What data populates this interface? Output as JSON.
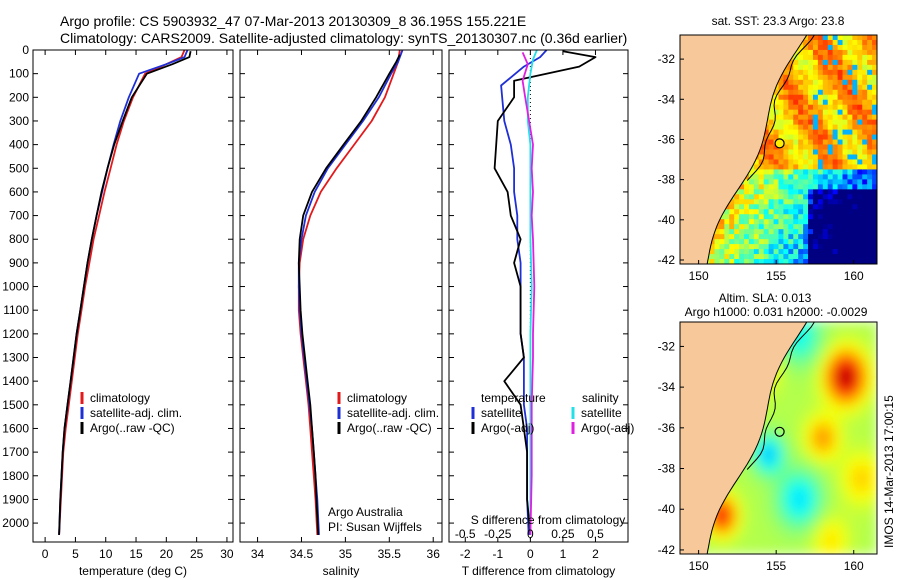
{
  "header": {
    "line1": "Argo profile: CS 5903932_47 07-Mar-2013 20130309_8 36.195S 155.221E",
    "line2": "Climatology: CARS2009. Satellite-adjusted climatology: synTS_20130307.nc (0.36d earlier)"
  },
  "colors": {
    "climatology": "#e31a1c",
    "satellite": "#1f2fd6",
    "argo": "#000000",
    "sal_satellite": "#22e0e8",
    "sal_argo": "#e020e0",
    "land": "#f7c99a"
  },
  "chart_data": [
    {
      "id": "temperature",
      "type": "line",
      "xlabel": "temperature (deg C)",
      "ylabel": "",
      "xlim": [
        -2,
        31
      ],
      "ylim": [
        2080,
        0
      ],
      "xticks": [
        0,
        5,
        10,
        15,
        20,
        25,
        30
      ],
      "yticks": [
        0,
        100,
        200,
        300,
        400,
        500,
        600,
        700,
        800,
        900,
        1000,
        1100,
        1200,
        1300,
        1400,
        1500,
        1600,
        1700,
        1800,
        1900,
        2000
      ],
      "legend": [
        "climatology",
        "satellite-adj. clim.",
        "Argo(..raw -QC)"
      ],
      "series": [
        {
          "name": "climatology",
          "x": [
            23.0,
            22.5,
            20.0,
            16.5,
            14.5,
            13.0,
            11.8,
            10.8,
            9.8,
            8.9,
            8.0,
            7.3,
            6.6,
            6.0,
            5.4,
            4.9,
            4.4,
            3.9,
            3.4,
            3.0,
            2.6,
            2.3
          ],
          "y": [
            0,
            30,
            60,
            100,
            200,
            300,
            400,
            500,
            600,
            700,
            800,
            900,
            1000,
            1100,
            1200,
            1300,
            1400,
            1500,
            1600,
            1700,
            1900,
            2050
          ]
        },
        {
          "name": "satellite-adj. clim.",
          "x": [
            23.5,
            23.0,
            20.0,
            15.5,
            13.8,
            12.4,
            11.3,
            10.3,
            9.4,
            8.5,
            7.7,
            7.0,
            6.4,
            5.8,
            5.2,
            4.7,
            4.2,
            3.7,
            3.2,
            2.9,
            2.5,
            2.3
          ],
          "y": [
            0,
            30,
            60,
            100,
            200,
            300,
            400,
            500,
            600,
            700,
            800,
            900,
            1000,
            1100,
            1200,
            1300,
            1400,
            1500,
            1600,
            1700,
            1900,
            2050
          ]
        },
        {
          "name": "Argo(..raw -QC)",
          "x": [
            24.0,
            23.8,
            21.0,
            16.8,
            14.3,
            12.8,
            11.4,
            10.3,
            9.3,
            8.5,
            7.7,
            7.0,
            6.4,
            5.8,
            5.2,
            4.7,
            4.2,
            3.7,
            3.2,
            2.9,
            2.5,
            2.3
          ],
          "y": [
            5,
            30,
            60,
            100,
            200,
            300,
            400,
            500,
            600,
            700,
            800,
            900,
            1000,
            1100,
            1200,
            1300,
            1400,
            1500,
            1600,
            1700,
            1900,
            2050
          ]
        }
      ]
    },
    {
      "id": "salinity",
      "type": "line",
      "xlabel": "salinity",
      "xlim": [
        33.8,
        36.1
      ],
      "ylim": [
        2080,
        0
      ],
      "xticks": [
        34,
        34.5,
        35,
        35.5,
        36
      ],
      "legend": [
        "climatology",
        "satellite-adj. clim.",
        "Argo(..raw -QC)"
      ],
      "annotation": [
        "Argo Australia",
        "PI: Susan Wijffels"
      ],
      "series": [
        {
          "name": "climatology",
          "x": [
            35.62,
            35.6,
            35.55,
            35.45,
            35.3,
            35.1,
            34.9,
            34.72,
            34.6,
            34.52,
            34.48,
            34.47,
            34.47,
            34.49,
            34.52,
            34.55,
            34.58,
            34.6,
            34.62,
            34.64,
            34.66,
            34.68
          ],
          "y": [
            0,
            50,
            100,
            200,
            300,
            400,
            500,
            600,
            700,
            800,
            900,
            1000,
            1100,
            1200,
            1300,
            1400,
            1500,
            1600,
            1700,
            1800,
            1900,
            2050
          ]
        },
        {
          "name": "satellite-adj. clim.",
          "x": [
            35.65,
            35.6,
            35.52,
            35.38,
            35.2,
            35.0,
            34.8,
            34.65,
            34.55,
            34.5,
            34.47,
            34.47,
            34.48,
            34.5,
            34.53,
            34.56,
            34.59,
            34.62,
            34.64,
            34.66,
            34.68,
            34.7
          ],
          "y": [
            0,
            50,
            100,
            200,
            300,
            400,
            500,
            600,
            700,
            800,
            900,
            1000,
            1100,
            1200,
            1300,
            1400,
            1500,
            1600,
            1700,
            1800,
            1900,
            2050
          ]
        },
        {
          "name": "Argo(..raw -QC)",
          "x": [
            35.62,
            35.58,
            35.5,
            35.35,
            35.18,
            34.98,
            34.78,
            34.62,
            34.52,
            34.48,
            34.47,
            34.48,
            34.49,
            34.51,
            34.54,
            34.57,
            34.6,
            34.62,
            34.64,
            34.66,
            34.67,
            34.69
          ],
          "y": [
            20,
            50,
            100,
            200,
            300,
            400,
            500,
            600,
            700,
            800,
            900,
            1000,
            1100,
            1200,
            1300,
            1400,
            1500,
            1600,
            1700,
            1800,
            1900,
            2050
          ]
        }
      ]
    },
    {
      "id": "difference",
      "type": "line",
      "xlabel": "T difference from climatology",
      "xlabel_top": "S difference from climatology",
      "xlim": [
        -2.5,
        3.0
      ],
      "ylim": [
        2080,
        0
      ],
      "xticks": [
        -2,
        -1,
        0,
        1,
        2
      ],
      "xticks_top": [
        "-0.5",
        "-0.25",
        "0",
        "0.25",
        "0.5"
      ],
      "legend_titles": [
        "temperature",
        "salinity"
      ],
      "legend": [
        "satellite",
        "Argo(-adj)",
        "satellite",
        "Argo(-adj)"
      ],
      "series": [
        {
          "name": "T satellite",
          "x": [
            0.5,
            0.3,
            -0.2,
            -0.9,
            -0.8,
            -0.6,
            -0.5,
            -0.5,
            -0.4,
            -0.4,
            -0.3,
            -0.3,
            -0.3,
            -0.2,
            -0.2,
            -0.2,
            -0.1,
            -0.1,
            -0.1,
            -0.05
          ],
          "y": [
            0,
            30,
            70,
            150,
            300,
            400,
            500,
            600,
            700,
            800,
            900,
            1000,
            1200,
            1300,
            1400,
            1500,
            1600,
            1700,
            1900,
            2050
          ]
        },
        {
          "name": "T Argo(-adj)",
          "x": [
            1.0,
            2.0,
            1.5,
            -0.5,
            -0.5,
            -1.0,
            -1.1,
            -0.7,
            -0.6,
            -0.3,
            -0.5,
            -0.3,
            -0.3,
            -0.2,
            -0.8,
            -0.3,
            -0.2,
            -0.1,
            -0.1,
            0.0
          ],
          "y": [
            5,
            30,
            70,
            130,
            200,
            300,
            500,
            600,
            700,
            800,
            900,
            1000,
            1200,
            1300,
            1400,
            1500,
            1600,
            1700,
            1900,
            2050
          ]
        },
        {
          "name": "S satellite",
          "x": [
            0.05,
            0.02,
            0.0,
            -0.02,
            -0.02,
            0.0,
            0.0,
            0.0,
            0.0,
            0.0,
            0.01,
            0.0,
            0.0,
            0.0,
            0.0,
            0.0
          ],
          "y": [
            0,
            40,
            100,
            200,
            300,
            400,
            500,
            600,
            700,
            800,
            1000,
            1200,
            1400,
            1600,
            1800,
            2050
          ]
        },
        {
          "name": "S Argo(-adj)",
          "x": [
            -0.06,
            -0.02,
            -0.06,
            -0.04,
            -0.01,
            0.02,
            0.01,
            0.02,
            0.01,
            0.02,
            0.03,
            0.02,
            0.02,
            0.01,
            0.01,
            0.0
          ],
          "y": [
            10,
            60,
            130,
            200,
            300,
            400,
            500,
            600,
            700,
            800,
            1000,
            1200,
            1300,
            1500,
            1800,
            2050
          ]
        }
      ]
    },
    {
      "id": "sst_map",
      "type": "heatmap",
      "title": "sat. SST: 23.3 Argo: 23.8",
      "xlim": [
        148.8,
        161.5
      ],
      "ylim": [
        -42.2,
        -30.8
      ],
      "xticks": [
        150,
        155,
        160
      ],
      "yticks": [
        -32,
        -34,
        -36,
        -38,
        -40,
        -42
      ],
      "float_position": {
        "lon": 155.221,
        "lat": -36.195
      }
    },
    {
      "id": "sla_map",
      "type": "heatmap",
      "title": "Altim. SLA: 0.013",
      "subtitle": "Argo h1000: 0.031 h2000: -0.0029",
      "xlim": [
        148.8,
        161.5
      ],
      "ylim": [
        -42.2,
        -30.8
      ],
      "xticks": [
        150,
        155,
        160
      ],
      "yticks": [
        -32,
        -34,
        -36,
        -38,
        -40,
        -42
      ],
      "float_position": {
        "lon": 155.221,
        "lat": -36.195
      }
    }
  ],
  "footer": {
    "stamp": "IMOS 14-Mar-2013 17:00:15"
  }
}
